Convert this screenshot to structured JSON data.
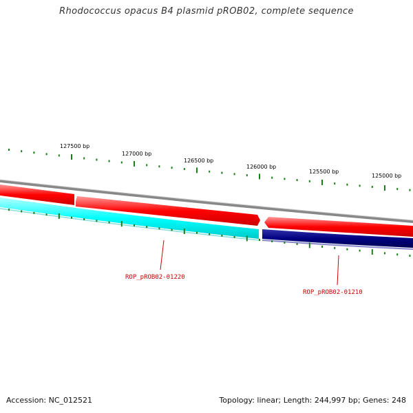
{
  "title": "Rhodococcus opacus B4 plasmid pROB02, complete sequence",
  "accession": "Accession: NC_012521",
  "summary": "Topology: linear; Length: 244,997 bp; Genes: 248",
  "ruler": {
    "labels": [
      "127500 bp",
      "127000 bp",
      "126500 bp",
      "126000 bp",
      "125500 bp",
      "125000 bp"
    ]
  },
  "genes": [
    {
      "id": "ROP_pROB02-01220",
      "strand": "reverse",
      "color": "#00ffff"
    },
    {
      "id": "ROP_pROB02-01210",
      "strand": "reverse",
      "color": "#000080"
    }
  ],
  "colors": {
    "backbone": "#888888",
    "forward_strand": "#ff0000",
    "reverse_a": "#00ffff",
    "reverse_b": "#000080",
    "ticks": "#1a7f1a",
    "labels": "#cc0000"
  }
}
